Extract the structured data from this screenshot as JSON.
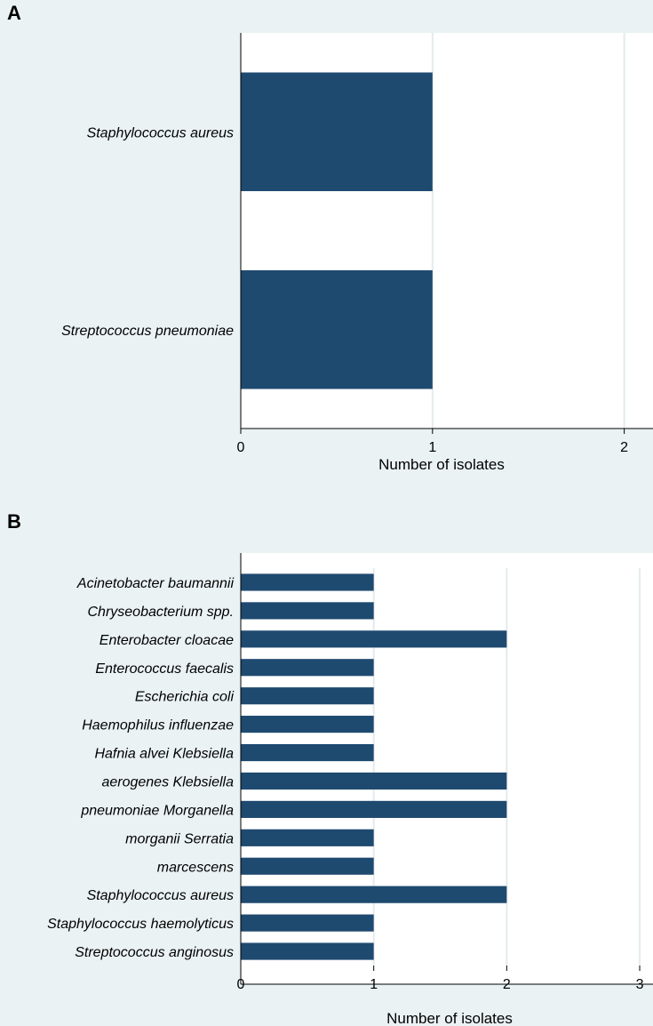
{
  "chart_data": [
    {
      "panel": "A",
      "type": "bar",
      "orientation": "horizontal",
      "categories": [
        "Staphylococcus aureus",
        "Streptococcus pneumoniae"
      ],
      "values": [
        1,
        1
      ],
      "xlabel": "Number of isolates",
      "ylabel": "",
      "xlim": [
        0,
        2.15
      ],
      "xticks": [
        "0",
        "1",
        "2"
      ],
      "grid": true,
      "bar_color": "#1f4a70"
    },
    {
      "panel": "B",
      "type": "bar",
      "orientation": "horizontal",
      "categories": [
        "Acinetobacter baumannii",
        "Chryseobacterium spp.",
        "Enterobacter cloacae",
        "Enterococcus faecalis",
        "Escherichia coli",
        "Haemophilus influenzae",
        "Hafnia alvei Klebsiella",
        "aerogenes Klebsiella",
        "pneumoniae Morganella",
        "morganii Serratia",
        "marcescens",
        "Staphylococcus aureus",
        "Staphylococcus haemolyticus",
        "Streptococcus anginosus"
      ],
      "values": [
        1,
        1,
        2,
        1,
        1,
        1,
        1,
        2,
        2,
        1,
        1,
        2,
        1,
        1
      ],
      "xlabel": "Number of isolates",
      "ylabel": "",
      "xlim": [
        0,
        3.1
      ],
      "xticks": [
        "0",
        "1",
        "2",
        "3"
      ],
      "grid": true,
      "bar_color": "#1f4a70"
    }
  ],
  "colors": {
    "background": "#eaf2f3",
    "plot_area": "#ffffff",
    "bar": "#1f4a70",
    "grid": "#e3ebee"
  }
}
